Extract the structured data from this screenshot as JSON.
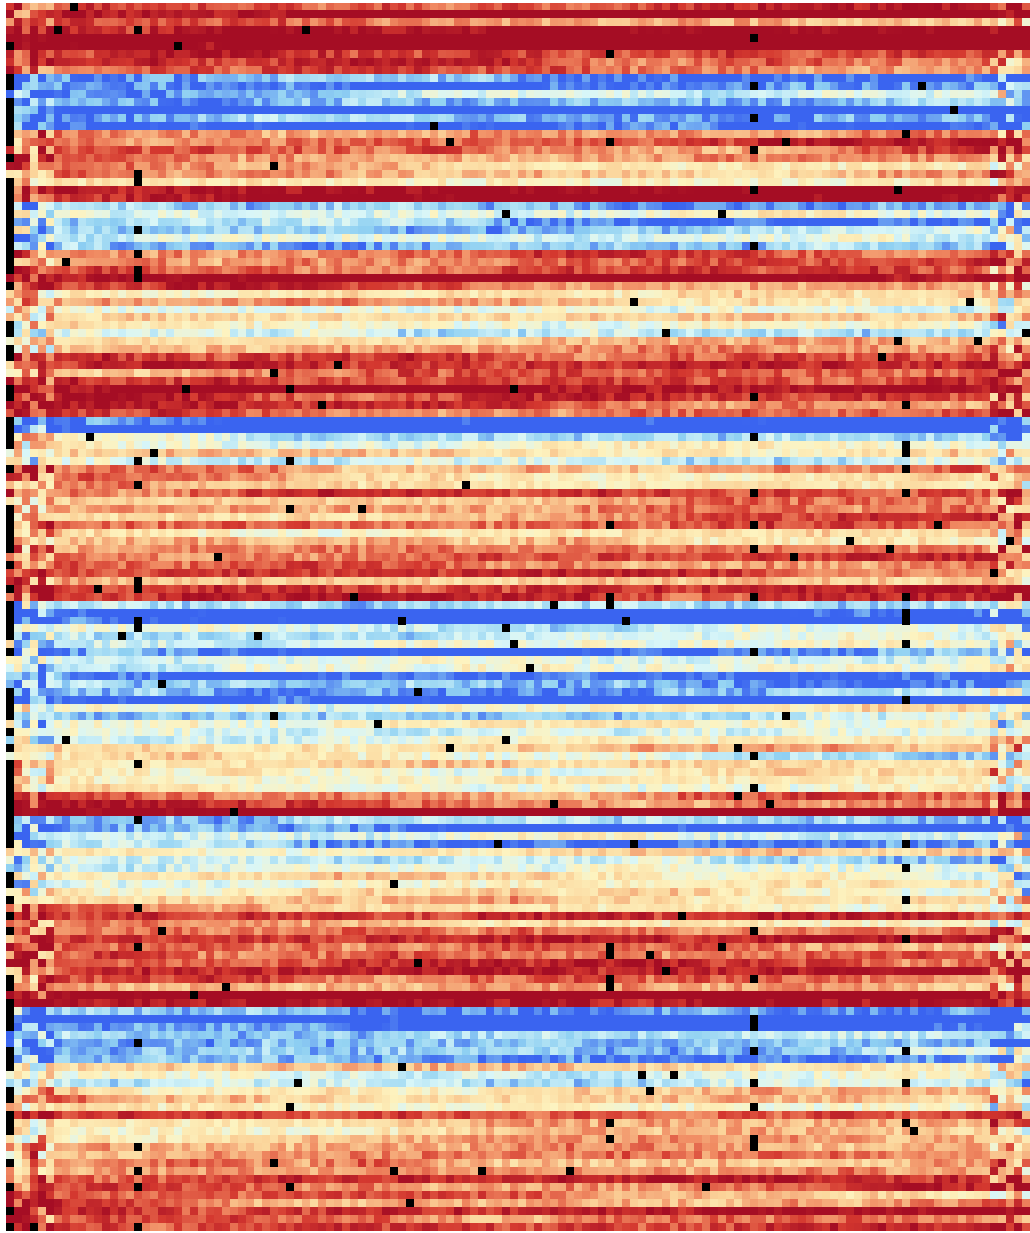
{
  "chart_data": {
    "type": "heatmap",
    "title": "",
    "xlabel": "",
    "ylabel": "",
    "grid": false,
    "legend": "none",
    "columns": 128,
    "rows": 154,
    "value_range": [
      0,
      1
    ],
    "missing_color": "#000000",
    "colormap": [
      "#3a64f0",
      "#8fd0f2",
      "#d8f6f8",
      "#fdf3bf",
      "#fbd49a",
      "#f08a62",
      "#d4382f",
      "#a50d24"
    ],
    "row_profile": [
      {
        "from": 0,
        "to": 9,
        "value": 0.93
      },
      {
        "from": 9,
        "to": 16,
        "value": 0.04
      },
      {
        "from": 16,
        "to": 23,
        "value": 0.72
      },
      {
        "from": 23,
        "to": 25,
        "value": 0.85
      },
      {
        "from": 25,
        "to": 31,
        "value": 0.28
      },
      {
        "from": 31,
        "to": 33,
        "value": 0.72
      },
      {
        "from": 33,
        "to": 36,
        "value": 0.88
      },
      {
        "from": 36,
        "to": 38,
        "value": 0.55
      },
      {
        "from": 38,
        "to": 42,
        "value": 0.4
      },
      {
        "from": 42,
        "to": 44,
        "value": 0.58
      },
      {
        "from": 44,
        "to": 46,
        "value": 0.82
      },
      {
        "from": 46,
        "to": 48,
        "value": 0.7
      },
      {
        "from": 48,
        "to": 50,
        "value": 0.86
      },
      {
        "from": 50,
        "to": 52,
        "value": 0.95
      },
      {
        "from": 52,
        "to": 54,
        "value": 0.06
      },
      {
        "from": 54,
        "to": 58,
        "value": 0.42
      },
      {
        "from": 58,
        "to": 62,
        "value": 0.72
      },
      {
        "from": 62,
        "to": 64,
        "value": 0.48
      },
      {
        "from": 64,
        "to": 69,
        "value": 0.66
      },
      {
        "from": 69,
        "to": 73,
        "value": 0.78
      },
      {
        "from": 73,
        "to": 75,
        "value": 0.92
      },
      {
        "from": 75,
        "to": 78,
        "value": 0.04
      },
      {
        "from": 78,
        "to": 84,
        "value": 0.18
      },
      {
        "from": 84,
        "to": 88,
        "value": 0.12
      },
      {
        "from": 88,
        "to": 91,
        "value": 0.28
      },
      {
        "from": 91,
        "to": 97,
        "value": 0.46
      },
      {
        "from": 97,
        "to": 99,
        "value": 0.6
      },
      {
        "from": 99,
        "to": 102,
        "value": 0.95
      },
      {
        "from": 102,
        "to": 105,
        "value": 0.15
      },
      {
        "from": 105,
        "to": 111,
        "value": 0.3
      },
      {
        "from": 111,
        "to": 114,
        "value": 0.6
      },
      {
        "from": 114,
        "to": 117,
        "value": 0.72
      },
      {
        "from": 117,
        "to": 122,
        "value": 0.8
      },
      {
        "from": 122,
        "to": 126,
        "value": 0.88
      },
      {
        "from": 126,
        "to": 128,
        "value": 0.08
      },
      {
        "from": 128,
        "to": 132,
        "value": 0.14
      },
      {
        "from": 132,
        "to": 134,
        "value": 0.3
      },
      {
        "from": 134,
        "to": 137,
        "value": 0.48
      },
      {
        "from": 137,
        "to": 140,
        "value": 0.72
      },
      {
        "from": 140,
        "to": 143,
        "value": 0.38
      },
      {
        "from": 143,
        "to": 147,
        "value": 0.62
      },
      {
        "from": 147,
        "to": 150,
        "value": 0.74
      },
      {
        "from": 150,
        "to": 154,
        "value": 0.88
      }
    ]
  }
}
